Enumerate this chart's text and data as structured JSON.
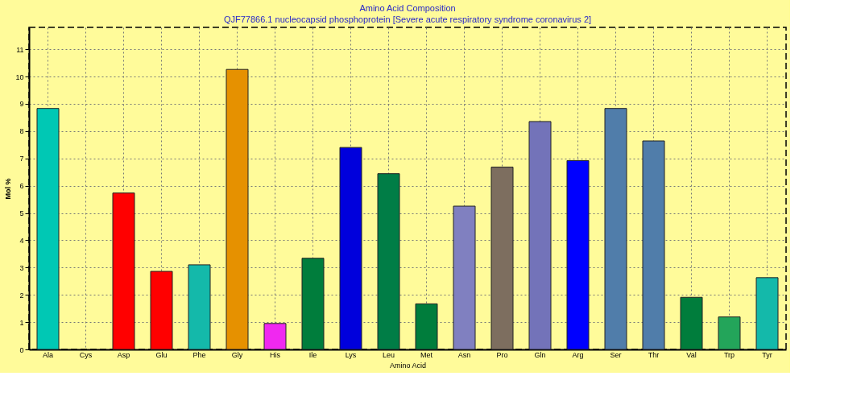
{
  "chart_data": {
    "type": "bar",
    "title": "Amino Acid Composition",
    "subtitle": "QJF77866.1 nucleocapsid phosphoprotein [Severe acute respiratory syndrome coronavirus 2]",
    "xlabel": "Amino Acid",
    "ylabel": "Mol %",
    "categories": [
      "Ala",
      "Cys",
      "Asp",
      "Glu",
      "Phe",
      "Gly",
      "His",
      "Ile",
      "Lys",
      "Leu",
      "Met",
      "Asn",
      "Pro",
      "Gln",
      "Arg",
      "Ser",
      "Thr",
      "Val",
      "Trp",
      "Tyr"
    ],
    "values": [
      8.83,
      0,
      5.73,
      2.86,
      3.1,
      10.26,
      0.95,
      3.34,
      7.4,
      6.44,
      1.67,
      5.25,
      6.68,
      8.35,
      6.92,
      8.83,
      7.64,
      1.91,
      1.19,
      2.63
    ],
    "colors": [
      "#00c8b4",
      "#00c8b4",
      "#ff0000",
      "#ff0000",
      "#14b9aa",
      "#e69100",
      "#f028f0",
      "#007d3c",
      "#0000dc",
      "#007d46",
      "#007d3c",
      "#8080c0",
      "#7d6e5f",
      "#7373b9",
      "#0000ff",
      "#507daa",
      "#507daa",
      "#007d3c",
      "#23a55a",
      "#14b9aa"
    ],
    "ylim": [
      0,
      11.8
    ],
    "yticks": [
      0,
      1,
      2,
      3,
      4,
      5,
      6,
      7,
      8,
      9,
      10,
      11
    ],
    "grid": true
  }
}
